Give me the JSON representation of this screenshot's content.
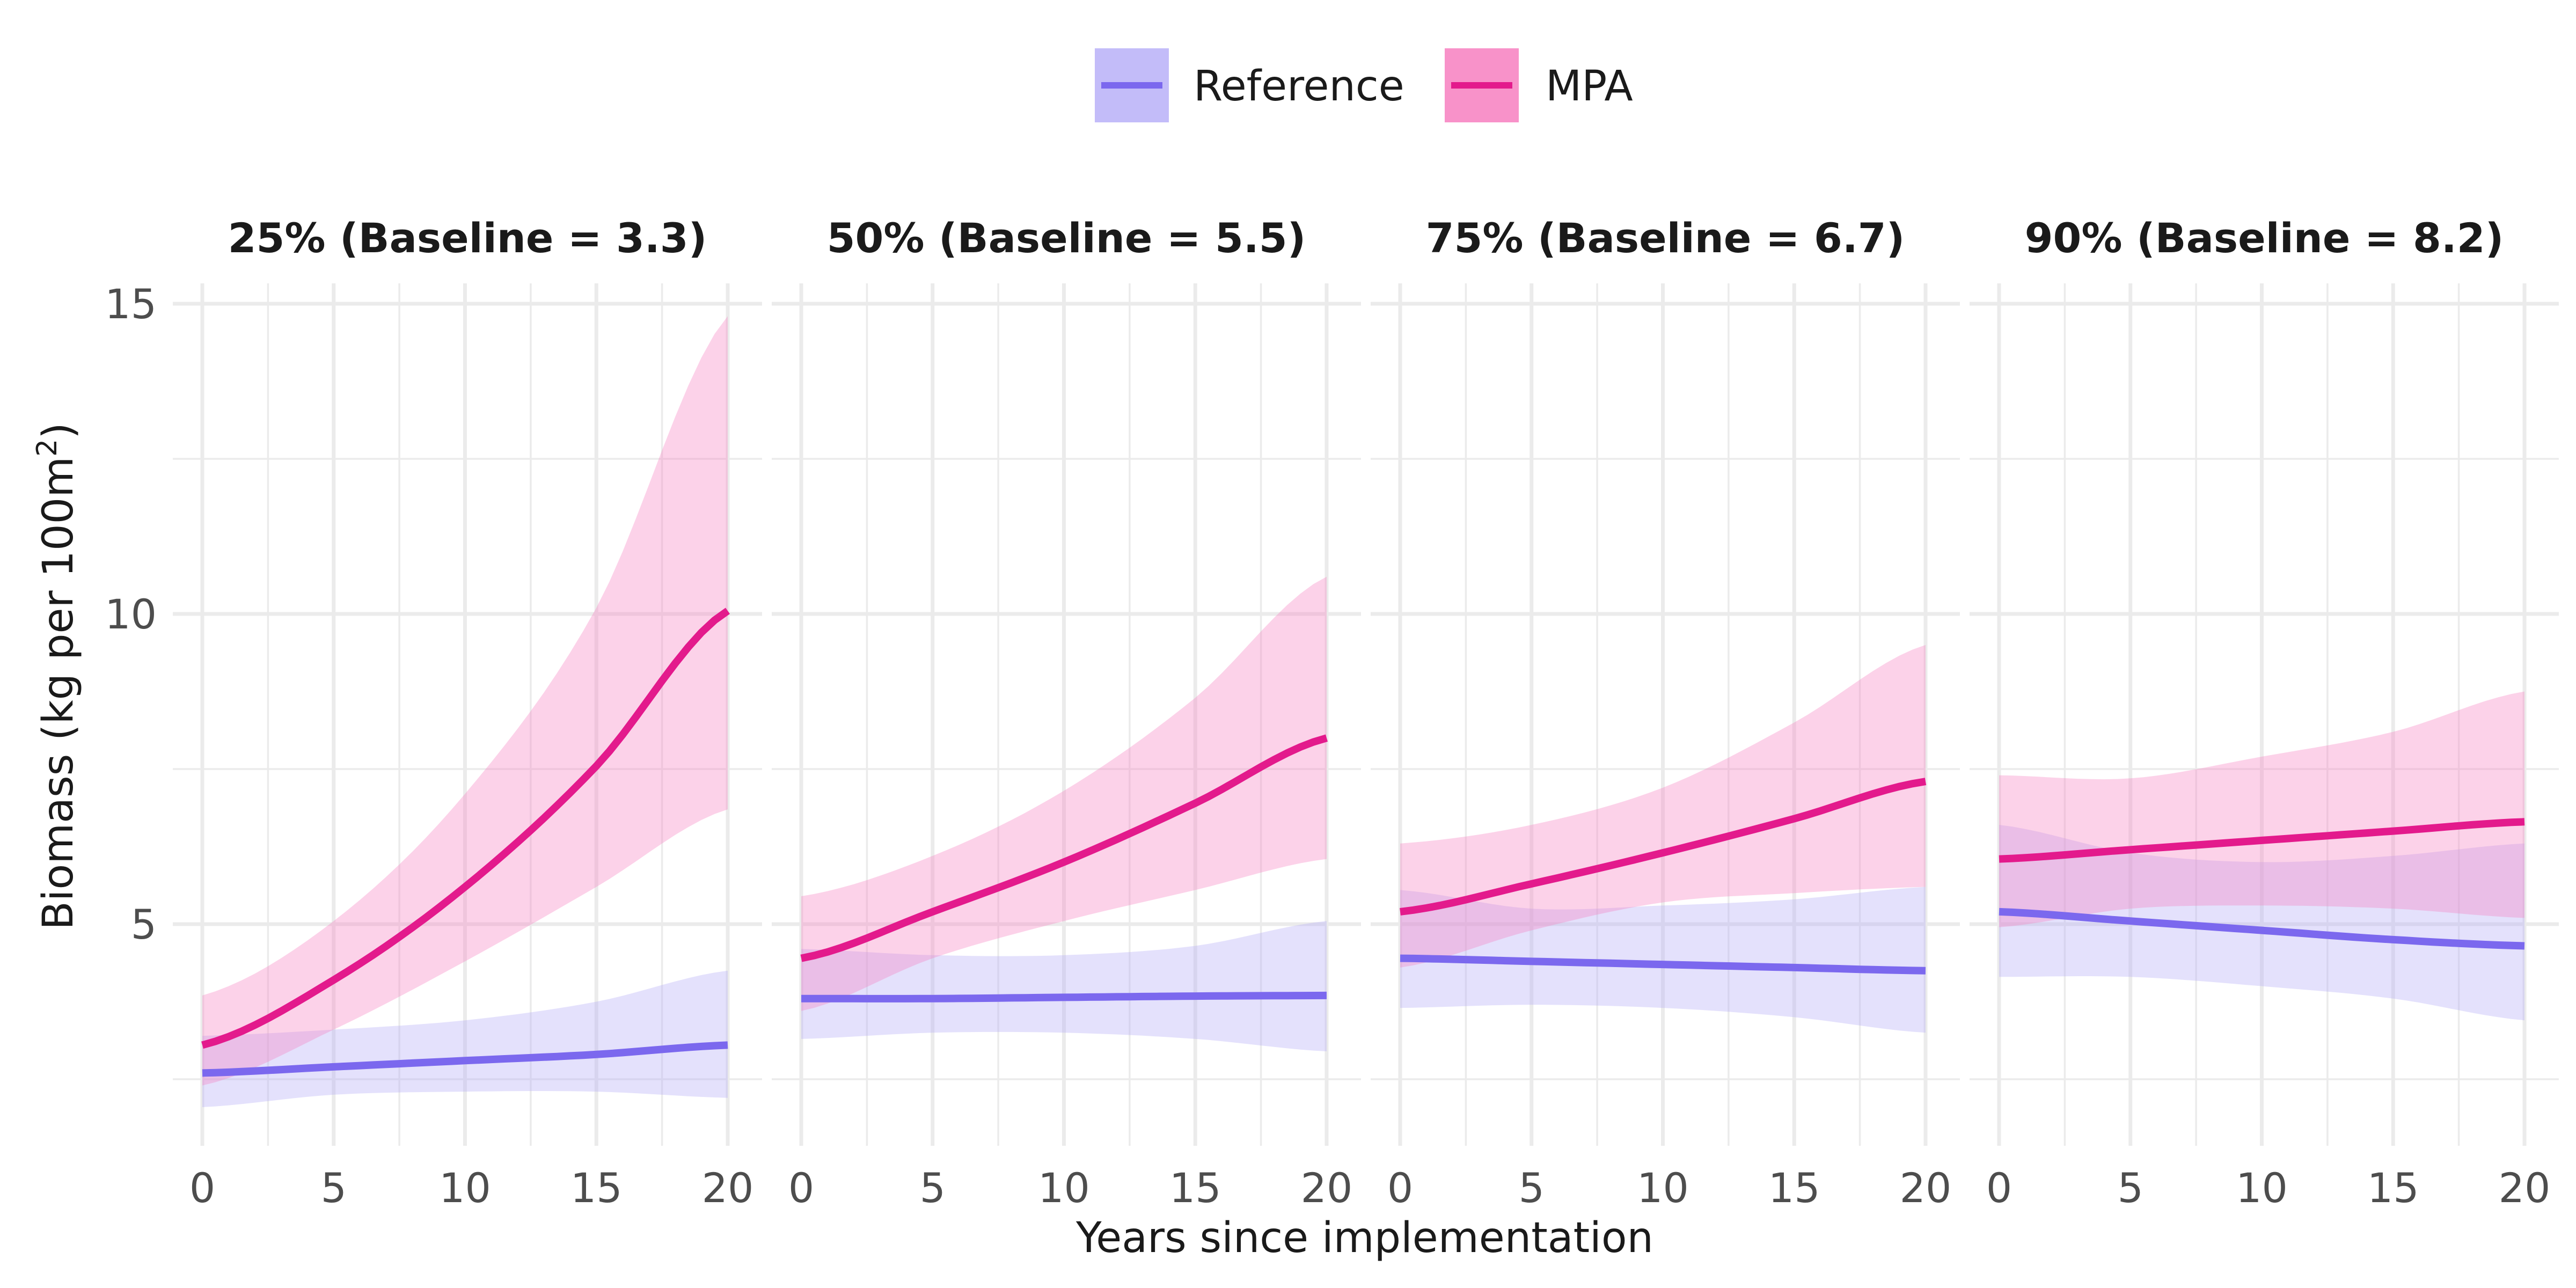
{
  "chart_data": {
    "type": "line",
    "xlabel": "Years since implementation",
    "ylabel": {
      "main": "Biomass (kg per 100m",
      "superscript": "2",
      "close": ")"
    },
    "xlim": [
      0,
      20
    ],
    "ylim": [
      1.5,
      15.5
    ],
    "x_ticks": [
      0,
      5,
      10,
      15,
      20
    ],
    "y_ticks": [
      5,
      10,
      15
    ],
    "y_minor_ticks": [
      2.5,
      7.5,
      12.5
    ],
    "grid": true,
    "legend": {
      "position": "top",
      "items": [
        {
          "name": "Reference",
          "line_color": "#7b68ee",
          "fill_color": "#b8b0f8"
        },
        {
          "name": "MPA",
          "line_color": "#e31a8c",
          "fill_color": "#f77fbf"
        }
      ]
    },
    "facets": [
      {
        "title": "25% (Baseline = 3.3)",
        "series": [
          {
            "name": "Reference",
            "x": [
              0,
              5,
              10,
              15,
              20
            ],
            "y": [
              2.6,
              2.7,
              2.8,
              2.9,
              3.05
            ],
            "lower": [
              2.05,
              2.25,
              2.3,
              2.3,
              2.2
            ],
            "upper": [
              3.2,
              3.3,
              3.45,
              3.75,
              4.25
            ]
          },
          {
            "name": "MPA",
            "x": [
              0,
              5,
              10,
              15,
              20
            ],
            "y": [
              3.05,
              4.1,
              5.6,
              7.55,
              10.05
            ],
            "lower": [
              2.4,
              3.3,
              4.4,
              5.6,
              6.85
            ],
            "upper": [
              3.85,
              5.05,
              7.1,
              10.1,
              14.8
            ]
          }
        ]
      },
      {
        "title": "50% (Baseline = 5.5)",
        "series": [
          {
            "name": "Reference",
            "x": [
              0,
              5,
              10,
              15,
              20
            ],
            "y": [
              3.8,
              3.8,
              3.82,
              3.84,
              3.85
            ],
            "lower": [
              3.15,
              3.25,
              3.25,
              3.15,
              2.95
            ],
            "upper": [
              4.6,
              4.5,
              4.5,
              4.65,
              5.05
            ]
          },
          {
            "name": "MPA",
            "x": [
              0,
              5,
              10,
              15,
              20
            ],
            "y": [
              4.45,
              5.2,
              6.0,
              6.95,
              8.0
            ],
            "lower": [
              3.6,
              4.45,
              5.05,
              5.55,
              6.05
            ],
            "upper": [
              5.45,
              6.1,
              7.15,
              8.65,
              10.6
            ]
          }
        ]
      },
      {
        "title": "75% (Baseline = 6.7)",
        "series": [
          {
            "name": "Reference",
            "x": [
              0,
              5,
              10,
              15,
              20
            ],
            "y": [
              4.45,
              4.4,
              4.35,
              4.3,
              4.25
            ],
            "lower": [
              3.65,
              3.7,
              3.65,
              3.5,
              3.25
            ],
            "upper": [
              5.55,
              5.25,
              5.3,
              5.4,
              5.6
            ]
          },
          {
            "name": "MPA",
            "x": [
              0,
              5,
              10,
              15,
              20
            ],
            "y": [
              5.2,
              5.65,
              6.15,
              6.7,
              7.3
            ],
            "lower": [
              4.3,
              4.9,
              5.35,
              5.5,
              5.6
            ],
            "upper": [
              6.3,
              6.6,
              7.2,
              8.25,
              9.5
            ]
          }
        ]
      },
      {
        "title": "90% (Baseline = 8.2)",
        "series": [
          {
            "name": "Reference",
            "x": [
              0,
              5,
              10,
              15,
              20
            ],
            "y": [
              5.2,
              5.05,
              4.9,
              4.75,
              4.65
            ],
            "lower": [
              4.15,
              4.15,
              4.0,
              3.8,
              3.45
            ],
            "upper": [
              6.6,
              6.15,
              6.0,
              6.1,
              6.3
            ]
          },
          {
            "name": "MPA",
            "x": [
              0,
              5,
              10,
              15,
              20
            ],
            "y": [
              6.05,
              6.2,
              6.35,
              6.5,
              6.65
            ],
            "lower": [
              4.95,
              5.25,
              5.3,
              5.25,
              5.1
            ],
            "upper": [
              7.4,
              7.35,
              7.7,
              8.1,
              8.75
            ]
          }
        ]
      }
    ]
  }
}
